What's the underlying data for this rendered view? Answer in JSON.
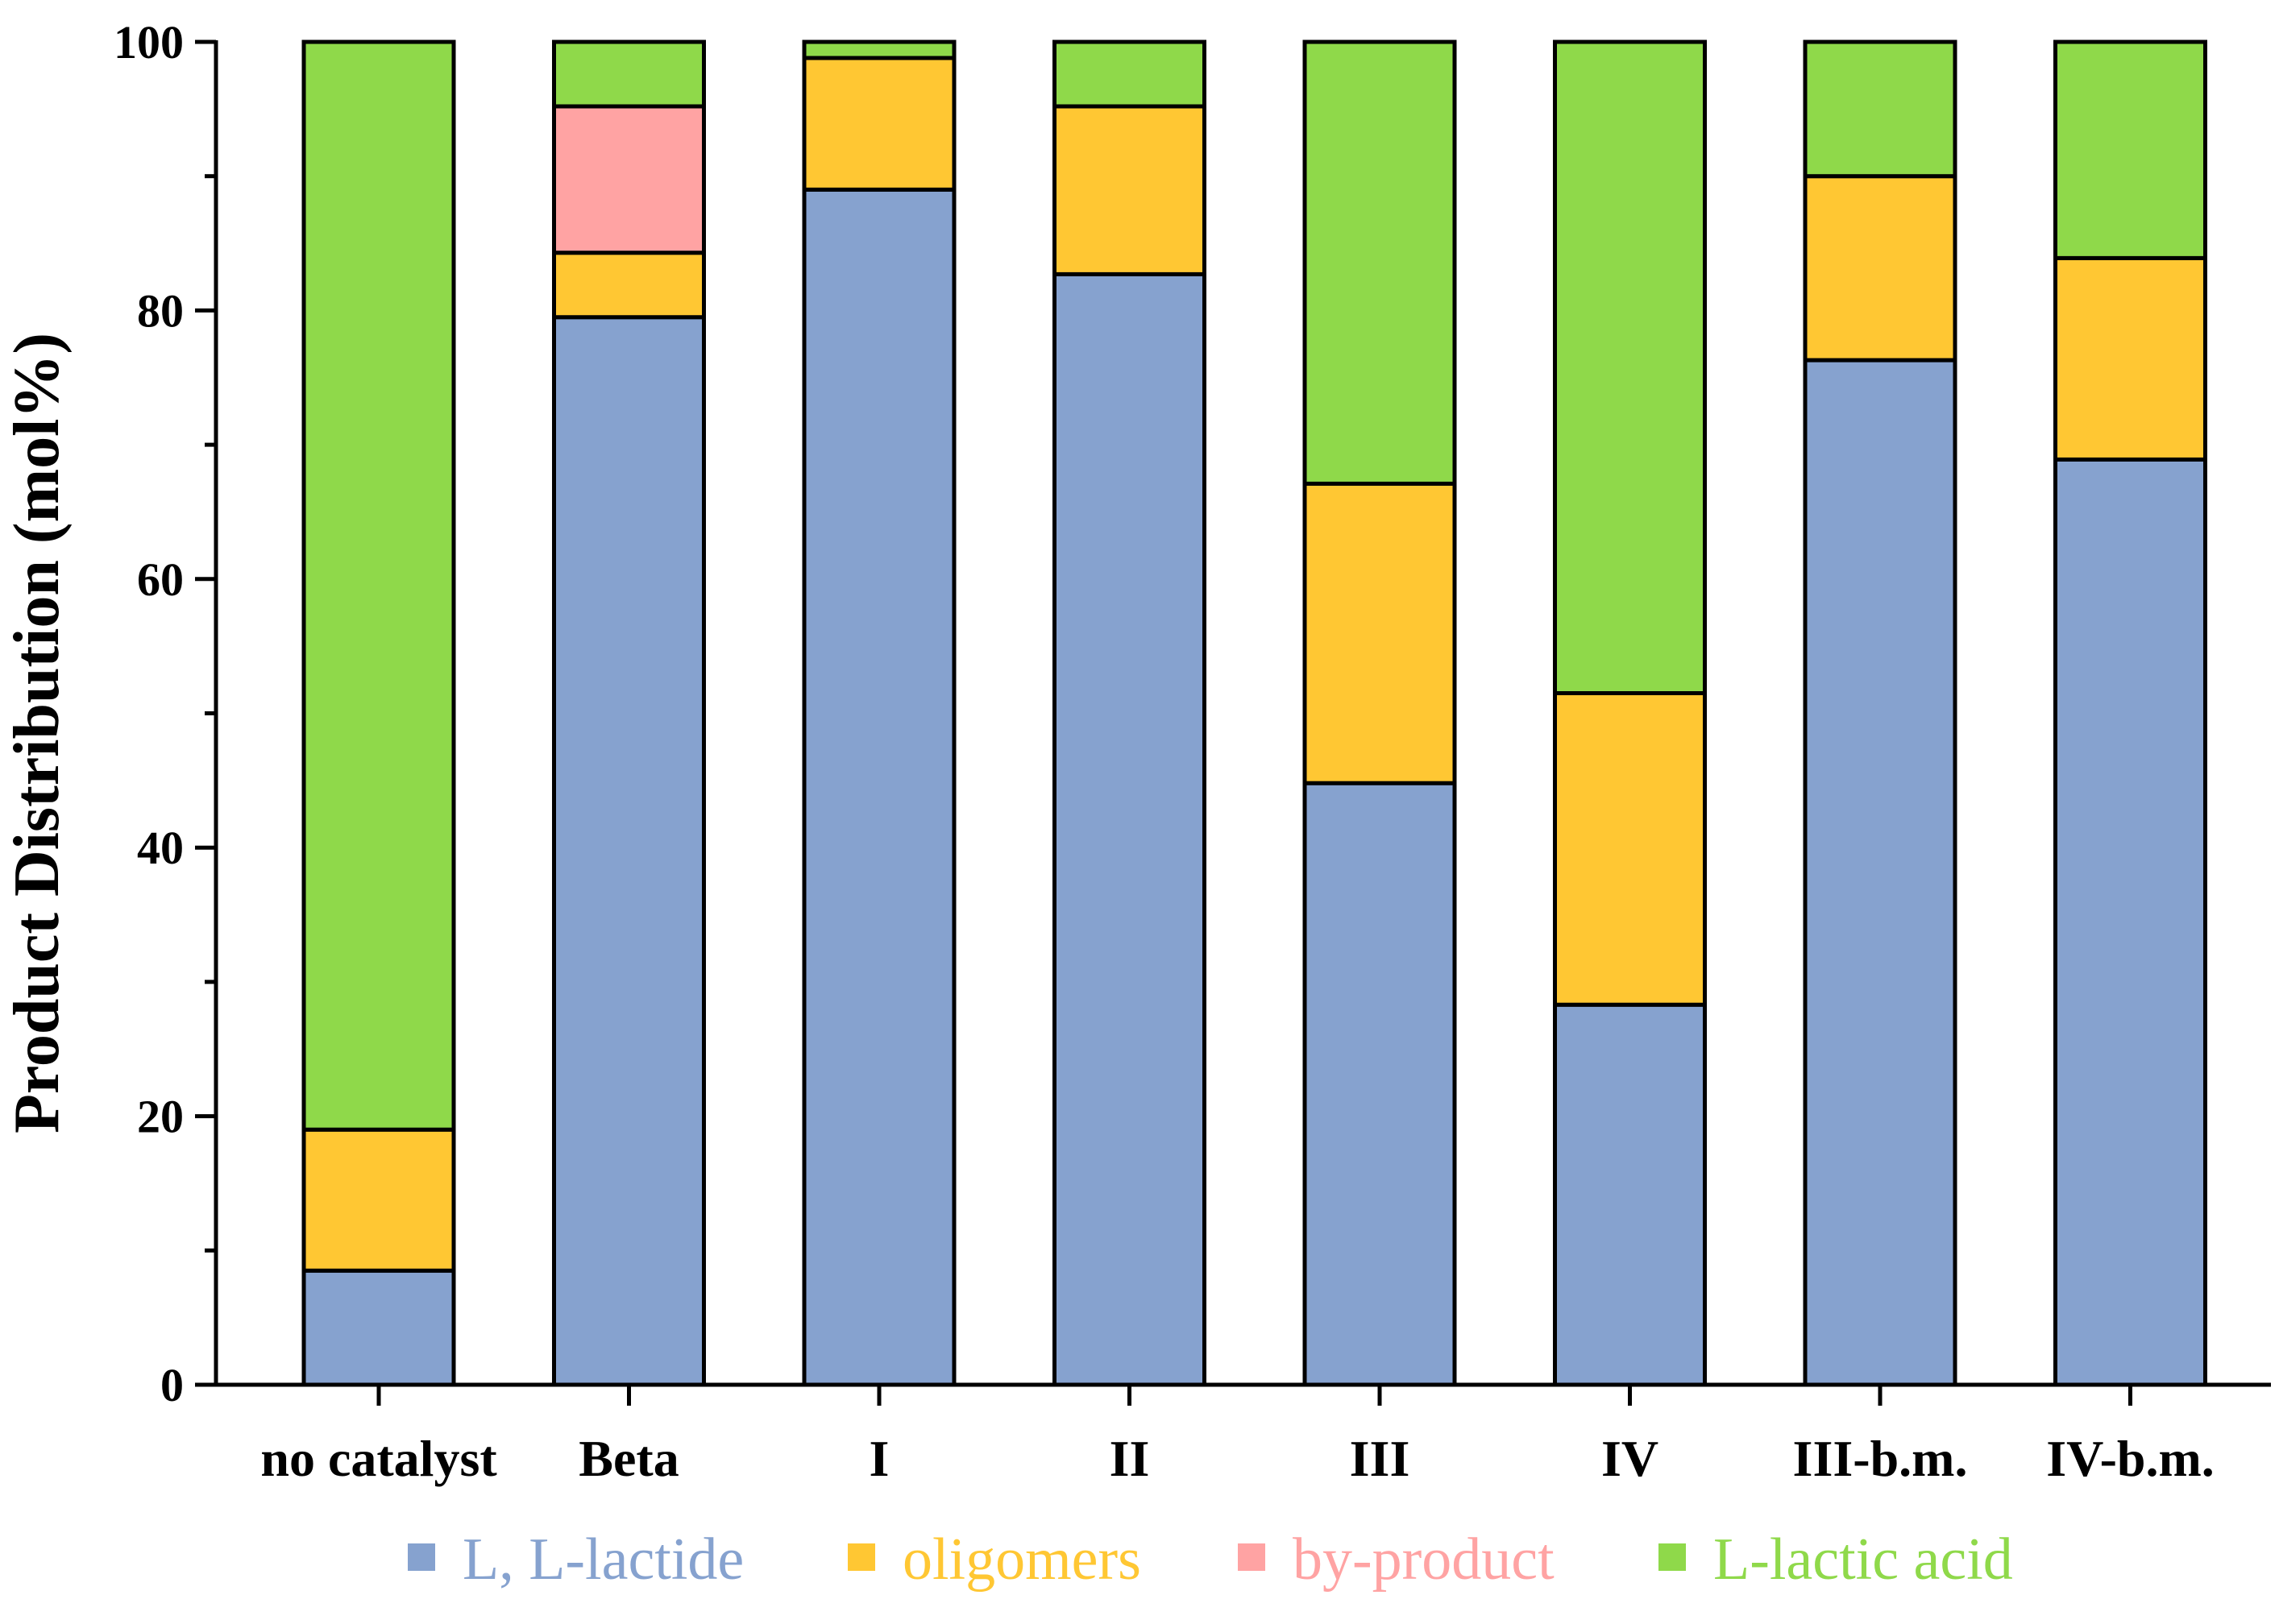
{
  "chart_data": {
    "type": "bar",
    "stacked": true,
    "title": "",
    "xlabel": "",
    "ylabel": "Product Distribution (mol%)",
    "ylim": [
      0,
      100
    ],
    "yticks": [
      0,
      20,
      40,
      60,
      80,
      100
    ],
    "yticks_minor": [
      10,
      30,
      50,
      70,
      90
    ],
    "grid": false,
    "legend_position": "bottom",
    "categories": [
      "no catalyst",
      "Beta",
      "I",
      "II",
      "III",
      "IV",
      "III-b.m.",
      "IV-b.m."
    ],
    "series": [
      {
        "name": "L, L-lactide",
        "color": "#86A2CF",
        "legend_text_color": "#86A2CF",
        "values": [
          8.5,
          79.5,
          89.0,
          82.7,
          44.8,
          28.3,
          76.3,
          68.9
        ]
      },
      {
        "name": "oligomers",
        "color": "#FFC733",
        "legend_text_color": "#FFC733",
        "values": [
          10.5,
          4.8,
          9.8,
          12.5,
          22.3,
          23.2,
          13.7,
          15.0
        ]
      },
      {
        "name": "by-product",
        "color": "#FFA3A3",
        "legend_text_color": "#FFA3A3",
        "values": [
          0,
          10.9,
          0,
          0,
          0,
          0,
          0,
          0
        ]
      },
      {
        "name": "L-lactic acid",
        "color": "#8FD94A",
        "legend_text_color": "#8FD94A",
        "values": [
          81.0,
          4.8,
          1.2,
          4.8,
          32.9,
          48.5,
          10.0,
          16.1
        ]
      }
    ]
  }
}
